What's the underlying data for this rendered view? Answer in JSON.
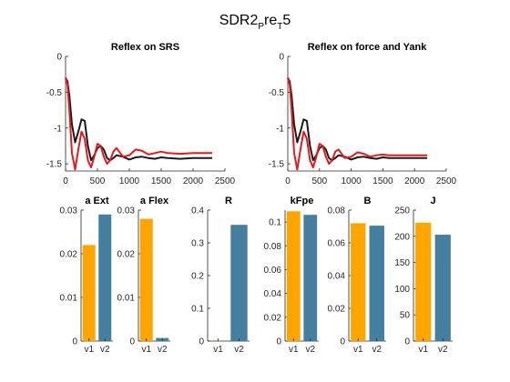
{
  "figure": {
    "title_main": "SDR2",
    "title_sub1": "P",
    "title_mid": "re",
    "title_sub2": "T",
    "title_end": "5"
  },
  "colors": {
    "black_series": "#1a1a1a",
    "red_series": "#e41a1c",
    "orange_bar": "#ffa500",
    "blue_bar": "#447f9f"
  },
  "chart_data": [
    {
      "type": "line",
      "title": "Reflex on SRS",
      "xlim": [
        0,
        2500
      ],
      "ylim": [
        -1.6,
        0
      ],
      "xticks": [
        0,
        500,
        1000,
        1500,
        2000,
        2500
      ],
      "yticks": [
        0,
        -0.5,
        -1,
        -1.5
      ],
      "series": [
        {
          "color": "black",
          "x": [
            0,
            30,
            60,
            100,
            150,
            200,
            250,
            300,
            350,
            400,
            450,
            500,
            550,
            600,
            650,
            700,
            750,
            800,
            900,
            1000,
            1100,
            1200,
            1300,
            1400,
            1500,
            1600,
            1800,
            2000,
            2200,
            2300
          ],
          "y": [
            -0.3,
            -0.35,
            -0.55,
            -0.95,
            -1.2,
            -1.05,
            -0.88,
            -0.9,
            -1.25,
            -1.45,
            -1.38,
            -1.28,
            -1.25,
            -1.3,
            -1.42,
            -1.45,
            -1.42,
            -1.38,
            -1.4,
            -1.44,
            -1.41,
            -1.4,
            -1.42,
            -1.43,
            -1.41,
            -1.42,
            -1.43,
            -1.42,
            -1.42,
            -1.42
          ]
        },
        {
          "color": "red",
          "x": [
            0,
            30,
            60,
            100,
            150,
            200,
            250,
            300,
            350,
            400,
            450,
            500,
            550,
            600,
            650,
            700,
            750,
            800,
            900,
            1000,
            1100,
            1200,
            1300,
            1400,
            1500,
            1600,
            1800,
            2000,
            2200,
            2300
          ],
          "y": [
            -0.3,
            -0.4,
            -0.75,
            -1.35,
            -1.58,
            -1.3,
            -1.05,
            -1.15,
            -1.45,
            -1.55,
            -1.4,
            -1.22,
            -1.25,
            -1.4,
            -1.5,
            -1.45,
            -1.33,
            -1.28,
            -1.4,
            -1.38,
            -1.3,
            -1.32,
            -1.37,
            -1.35,
            -1.33,
            -1.35,
            -1.36,
            -1.35,
            -1.35,
            -1.35
          ]
        }
      ]
    },
    {
      "type": "line",
      "title": "Reflex on force and Yank",
      "xlim": [
        0,
        2500
      ],
      "ylim": [
        -1.6,
        0
      ],
      "xticks": [
        0,
        500,
        1000,
        1500,
        2000,
        2500
      ],
      "yticks": [
        0,
        -0.5,
        -1,
        -1.5
      ],
      "series": [
        {
          "color": "black",
          "x": [
            0,
            30,
            60,
            100,
            150,
            200,
            250,
            300,
            350,
            400,
            450,
            500,
            550,
            600,
            650,
            700,
            750,
            800,
            900,
            1000,
            1100,
            1200,
            1300,
            1400,
            1500,
            1600,
            1800,
            2000,
            2200
          ],
          "y": [
            -0.3,
            -0.35,
            -0.55,
            -0.95,
            -1.2,
            -1.05,
            -0.88,
            -0.9,
            -1.25,
            -1.45,
            -1.38,
            -1.28,
            -1.25,
            -1.3,
            -1.42,
            -1.45,
            -1.42,
            -1.38,
            -1.4,
            -1.44,
            -1.41,
            -1.4,
            -1.42,
            -1.43,
            -1.41,
            -1.42,
            -1.42,
            -1.42,
            -1.42
          ]
        },
        {
          "color": "red",
          "x": [
            0,
            30,
            60,
            100,
            150,
            200,
            250,
            300,
            350,
            400,
            450,
            500,
            550,
            600,
            650,
            700,
            750,
            800,
            900,
            1000,
            1100,
            1200,
            1300,
            1400,
            1500,
            1600,
            1800,
            2000,
            2200
          ],
          "y": [
            -0.3,
            -0.4,
            -0.75,
            -1.35,
            -1.58,
            -1.3,
            -1.05,
            -1.15,
            -1.45,
            -1.55,
            -1.4,
            -1.22,
            -1.25,
            -1.4,
            -1.5,
            -1.45,
            -1.33,
            -1.3,
            -1.42,
            -1.4,
            -1.34,
            -1.36,
            -1.4,
            -1.38,
            -1.37,
            -1.38,
            -1.38,
            -1.38,
            -1.38
          ]
        }
      ]
    },
    {
      "type": "bar",
      "title": "a Ext",
      "categories": [
        "v1",
        "v2"
      ],
      "values": [
        0.022,
        0.029
      ],
      "ylim": [
        0,
        0.03
      ],
      "yticks": [
        0,
        0.01,
        0.02,
        0.03
      ],
      "ytick_labels": [
        "0",
        "0.01",
        "0.02",
        "0.03"
      ]
    },
    {
      "type": "bar",
      "title": "a Flex",
      "categories": [
        "v1",
        "v2"
      ],
      "values": [
        0.028,
        0.0007
      ],
      "ylim": [
        0,
        0.03
      ],
      "yticks": [
        0,
        0.01,
        0.02,
        0.03
      ],
      "ytick_labels": [
        "0",
        "0.01",
        "0.02",
        "0.03"
      ]
    },
    {
      "type": "bar",
      "title": "R",
      "categories": [
        "v1",
        "v2"
      ],
      "values": [
        0,
        0.355
      ],
      "ylim": [
        0,
        0.4
      ],
      "yticks": [
        0,
        0.1,
        0.2,
        0.3,
        0.4
      ],
      "ytick_labels": [
        "0",
        "0.1",
        "0.2",
        "0.3",
        "0.4"
      ]
    },
    {
      "type": "bar",
      "title": "kFpe",
      "categories": [
        "v1",
        "v2"
      ],
      "values": [
        0.109,
        0.106
      ],
      "ylim": [
        0,
        0.11
      ],
      "yticks": [
        0,
        0.02,
        0.04,
        0.06,
        0.08,
        0.1
      ],
      "ytick_labels": [
        "0",
        "0.02",
        "0.04",
        "0.06",
        "0.08",
        "0.1"
      ]
    },
    {
      "type": "bar",
      "title": "B",
      "categories": [
        "v1",
        "v2"
      ],
      "values": [
        0.072,
        0.0705
      ],
      "ylim": [
        0,
        0.08
      ],
      "yticks": [
        0,
        0.02,
        0.04,
        0.06,
        0.08
      ],
      "ytick_labels": [
        "0",
        "0.02",
        "0.04",
        "0.06",
        "0.08"
      ]
    },
    {
      "type": "bar",
      "title": "J",
      "categories": [
        "v1",
        "v2"
      ],
      "values": [
        226,
        203
      ],
      "ylim": [
        0,
        250
      ],
      "yticks": [
        0,
        50,
        100,
        150,
        200,
        250
      ],
      "ytick_labels": [
        "0",
        "50",
        "100",
        "150",
        "200",
        "250"
      ]
    }
  ]
}
